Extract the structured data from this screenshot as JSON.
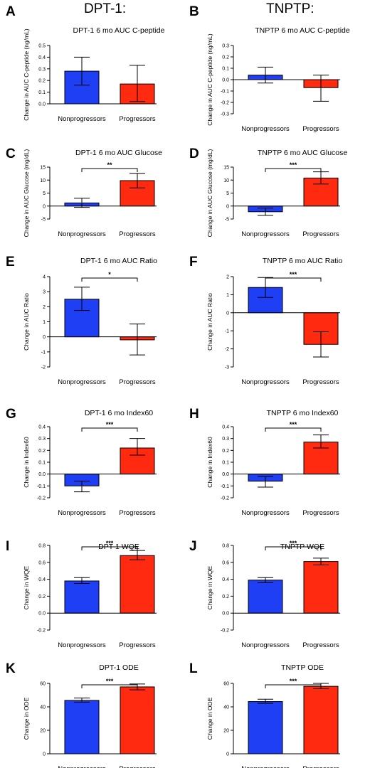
{
  "headers": {
    "left": "DPT-1:",
    "right": "TNPTP:"
  },
  "colors": {
    "nonprogressors": "#1f3ff5",
    "progressors": "#ff2a10"
  },
  "chart_data": [
    {
      "type": "bar",
      "panel": "A",
      "title": "DPT-1 6 mo AUC C-peptide",
      "ylabel": "Change in AUC C-peptide (ng/mL)",
      "categories": [
        "Nonprogressors",
        "Progressors"
      ],
      "values": [
        0.28,
        0.17
      ],
      "errors": [
        [
          0.16,
          0.4
        ],
        [
          0.02,
          0.33
        ]
      ],
      "ylim": [
        0,
        0.5
      ],
      "ticks": [
        "0.5",
        "0.4",
        "0.3",
        "0.2",
        "0.1",
        "0.0"
      ],
      "tick_values": [
        0.5,
        0.4,
        0.3,
        0.2,
        0.1,
        0.0
      ],
      "significance": ""
    },
    {
      "type": "bar",
      "panel": "B",
      "title": "TNPTP 6 mo AUC C-peptide",
      "ylabel": "Change in AUC C-peptide (ng/mL)",
      "categories": [
        "Nonprogressors",
        "Progressors"
      ],
      "values": [
        0.04,
        -0.07
      ],
      "errors": [
        [
          -0.03,
          0.11
        ],
        [
          -0.19,
          0.04
        ]
      ],
      "ylim": [
        -0.3,
        0.3
      ],
      "ticks": [
        "0.3",
        "0.2",
        "0.1",
        "0.0",
        "-0.1",
        "-0.2",
        "-0.3"
      ],
      "tick_values": [
        0.3,
        0.2,
        0.1,
        0.0,
        -0.1,
        -0.2,
        -0.3
      ],
      "significance": ""
    },
    {
      "type": "bar",
      "panel": "C",
      "title": "DPT-1 6 mo AUC Glucose",
      "ylabel": "Change in AUC Glucose (mg/dL)",
      "categories": [
        "Nonprogressors",
        "Progressors"
      ],
      "values": [
        1.2,
        9.8
      ],
      "errors": [
        [
          -0.5,
          3.0
        ],
        [
          7.0,
          12.6
        ]
      ],
      "ylim": [
        -5,
        15
      ],
      "ticks": [
        "15",
        "10",
        "5",
        "0",
        "-5"
      ],
      "tick_values": [
        15,
        10,
        5,
        0,
        -5
      ],
      "significance": "**"
    },
    {
      "type": "bar",
      "panel": "D",
      "title": "TNPTP 6 mo AUC Glucose",
      "ylabel": "Change in AUC Glucose (mg/dL)",
      "categories": [
        "Nonprogressors",
        "Progressors"
      ],
      "values": [
        -2.2,
        10.8
      ],
      "errors": [
        [
          -3.6,
          -0.8
        ],
        [
          8.5,
          13.2
        ]
      ],
      "ylim": [
        -5,
        15
      ],
      "ticks": [
        "15",
        "10",
        "5",
        "0",
        "-5"
      ],
      "tick_values": [
        15,
        10,
        5,
        0,
        -5
      ],
      "significance": "***"
    },
    {
      "type": "bar",
      "panel": "E",
      "title": "DPT-1 6 mo AUC Ratio",
      "ylabel": "Change in AUC Ratio",
      "categories": [
        "Nonprogressors",
        "Progressors"
      ],
      "values": [
        2.5,
        -0.2
      ],
      "errors": [
        [
          1.75,
          3.3
        ],
        [
          -1.2,
          0.85
        ]
      ],
      "ylim": [
        -2,
        4
      ],
      "ticks": [
        "4",
        "3",
        "2",
        "1",
        "0",
        "-1",
        "-2"
      ],
      "tick_values": [
        4,
        3,
        2,
        1,
        0,
        -1,
        -2
      ],
      "significance": "*"
    },
    {
      "type": "bar",
      "panel": "F",
      "title": "TNPTP 6 mo AUC Ratio",
      "ylabel": "Change in AUC Ratio",
      "categories": [
        "Nonprogressors",
        "Progressors"
      ],
      "values": [
        1.4,
        -1.75
      ],
      "errors": [
        [
          0.85,
          1.95
        ],
        [
          -2.45,
          -1.05
        ]
      ],
      "ylim": [
        -3,
        2
      ],
      "ticks": [
        "2",
        "1",
        "0",
        "-1",
        "-2",
        "-3"
      ],
      "tick_values": [
        2,
        1,
        0,
        -1,
        -2,
        -3
      ],
      "significance": "***"
    },
    {
      "type": "bar",
      "panel": "G",
      "title": "DPT-1 6 mo Index60",
      "ylabel": "Change in Index60",
      "categories": [
        "Nonprogressors",
        "Progressors"
      ],
      "values": [
        -0.1,
        0.22
      ],
      "errors": [
        [
          -0.15,
          -0.06
        ],
        [
          0.16,
          0.3
        ]
      ],
      "ylim": [
        -0.2,
        0.4
      ],
      "ticks": [
        "0.4",
        "0.3",
        "0.2",
        "0.1",
        "0.0",
        "-0.1",
        "-0.2"
      ],
      "tick_values": [
        0.4,
        0.3,
        0.2,
        0.1,
        0.0,
        -0.1,
        -0.2
      ],
      "significance": "***"
    },
    {
      "type": "bar",
      "panel": "H",
      "title": "TNPTP 6 mo Index60",
      "ylabel": "Change in Index60",
      "categories": [
        "Nonprogressors",
        "Progressors"
      ],
      "values": [
        -0.06,
        0.27
      ],
      "errors": [
        [
          -0.11,
          -0.02
        ],
        [
          0.22,
          0.33
        ]
      ],
      "ylim": [
        -0.2,
        0.4
      ],
      "ticks": [
        "0.4",
        "0.3",
        "0.2",
        "0.1",
        "0.0",
        "-0.1",
        "-0.2"
      ],
      "tick_values": [
        0.4,
        0.3,
        0.2,
        0.1,
        0.0,
        -0.1,
        -0.2
      ],
      "significance": "***"
    },
    {
      "type": "bar",
      "panel": "I",
      "title": "DPT-1 WQE",
      "ylabel": "Change in WQE",
      "categories": [
        "Nonprogressors",
        "Progressors"
      ],
      "values": [
        0.38,
        0.68
      ],
      "errors": [
        [
          0.35,
          0.42
        ],
        [
          0.63,
          0.74
        ]
      ],
      "ylim": [
        -0.2,
        0.8
      ],
      "ticks": [
        "0.8",
        "0.6",
        "0.4",
        "0.2",
        "0.0",
        "-0.2"
      ],
      "tick_values": [
        0.8,
        0.6,
        0.4,
        0.2,
        0.0,
        -0.2
      ],
      "significance": "***"
    },
    {
      "type": "bar",
      "panel": "J",
      "title": "TNPTP WQE",
      "ylabel": "Change in WQE",
      "categories": [
        "Nonprogressors",
        "Progressors"
      ],
      "values": [
        0.39,
        0.61
      ],
      "errors": [
        [
          0.36,
          0.42
        ],
        [
          0.57,
          0.65
        ]
      ],
      "ylim": [
        -0.2,
        0.8
      ],
      "ticks": [
        "0.8",
        "0.6",
        "0.4",
        "0.2",
        "0.0",
        "-0.2"
      ],
      "tick_values": [
        0.8,
        0.6,
        0.4,
        0.2,
        0.0,
        -0.2
      ],
      "significance": "***"
    },
    {
      "type": "bar",
      "panel": "K",
      "title": "DPT-1 ODE",
      "ylabel": "Change in ODE",
      "categories": [
        "Nonprogressors",
        "Progressors"
      ],
      "values": [
        45.5,
        57
      ],
      "errors": [
        [
          44,
          47.5
        ],
        [
          54.5,
          59.5
        ]
      ],
      "ylim": [
        0,
        60
      ],
      "ticks": [
        "60",
        "40",
        "20",
        "0"
      ],
      "tick_values": [
        60,
        40,
        20,
        0
      ],
      "significance": "***"
    },
    {
      "type": "bar",
      "panel": "L",
      "title": "TNPTP ODE",
      "ylabel": "Change in ODE",
      "categories": [
        "Nonprogressors",
        "Progressors"
      ],
      "values": [
        44.5,
        57.5
      ],
      "errors": [
        [
          43,
          46.5
        ],
        [
          55.5,
          60
        ]
      ],
      "ylim": [
        0,
        60
      ],
      "ticks": [
        "60",
        "40",
        "20",
        "0"
      ],
      "tick_values": [
        60,
        40,
        20,
        0
      ],
      "significance": "***"
    }
  ]
}
